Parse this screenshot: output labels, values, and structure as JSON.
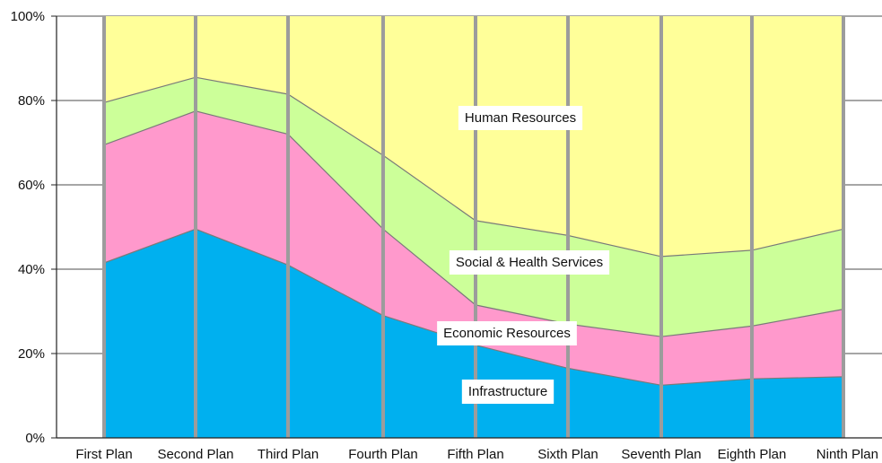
{
  "chart_data": {
    "type": "area",
    "stacked": true,
    "normalized": true,
    "categories": [
      "First Plan",
      "Second Plan",
      "Third Plan",
      "Fourth Plan",
      "Fifth Plan",
      "Sixth Plan",
      "Seventh Plan",
      "Eighth Plan",
      "Ninth Plan"
    ],
    "series": [
      {
        "name": "Infrastructure",
        "color": "#00B0EF",
        "values": [
          41.5,
          49.5,
          41,
          29,
          22,
          16.5,
          12.5,
          14,
          14.5
        ]
      },
      {
        "name": "Economic Resources",
        "color": "#FF99CC",
        "values": [
          28,
          28,
          31,
          20.5,
          9.5,
          10.5,
          11.5,
          12.5,
          16
        ]
      },
      {
        "name": "Social & Health Services",
        "color": "#CCFF99",
        "values": [
          10,
          8,
          9.5,
          17.5,
          20,
          21,
          19,
          18,
          19
        ]
      },
      {
        "name": "Human Resources",
        "color": "#FFFF99",
        "values": [
          20.5,
          14.5,
          18.5,
          33,
          48.5,
          52,
          57,
          55.5,
          50.5
        ]
      }
    ],
    "yticks": [
      "0%",
      "20%",
      "40%",
      "60%",
      "80%",
      "100%"
    ],
    "ylim": [
      0,
      100
    ],
    "grid": true,
    "title": "",
    "xlabel": "",
    "ylabel": ""
  }
}
